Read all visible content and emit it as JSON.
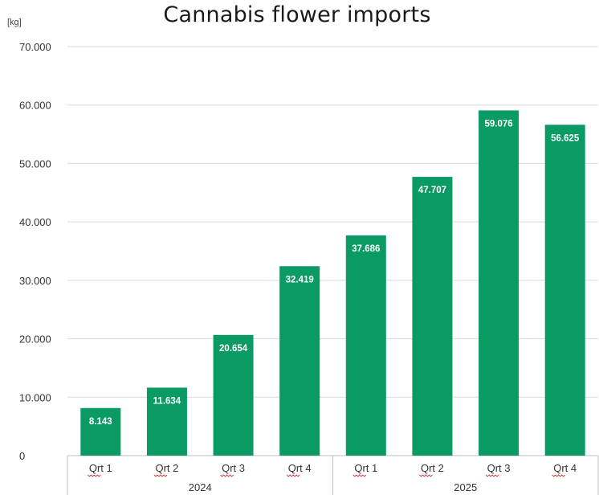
{
  "chart_data": {
    "type": "bar",
    "title": "Cannabis flower imports",
    "ylabel": "[kg]",
    "xlabel": "",
    "ylim": [
      0,
      70000
    ],
    "y_ticks": [
      0,
      10000,
      20000,
      30000,
      40000,
      50000,
      60000,
      70000
    ],
    "y_tick_labels": [
      "0",
      "10.000",
      "20.000",
      "30.000",
      "40.000",
      "50.000",
      "60.000",
      "70.000"
    ],
    "grid": true,
    "bar_color": "#0a9b64",
    "grid_color": "#d9d9d9",
    "groups": [
      {
        "label": "2024",
        "categories": [
          "Qrt 1",
          "Qrt 2",
          "Qrt 3",
          "Qrt 4"
        ]
      },
      {
        "label": "2025",
        "categories": [
          "Qrt 1",
          "Qrt 2",
          "Qrt 3",
          "Qrt 4"
        ]
      }
    ],
    "categories": [
      "Qrt 1",
      "Qrt 2",
      "Qrt 3",
      "Qrt 4",
      "Qrt 1",
      "Qrt 2",
      "Qrt 3",
      "Qrt 4"
    ],
    "values": [
      8143,
      11634,
      20654,
      32419,
      37686,
      47707,
      59076,
      56625
    ],
    "data_labels": [
      "8.143",
      "11.634",
      "20.654",
      "32.419",
      "37.686",
      "47.707",
      "59.076",
      "56.625"
    ]
  }
}
